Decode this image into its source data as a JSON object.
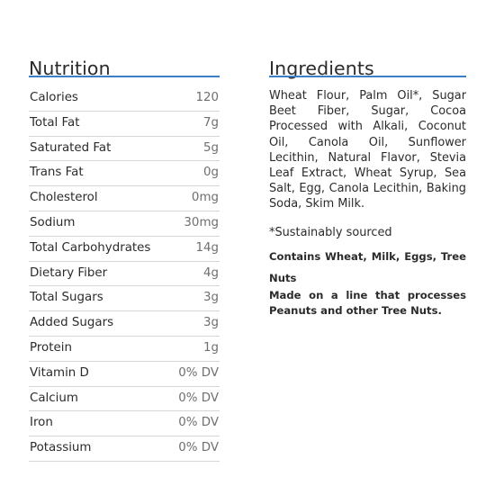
{
  "nutrition": {
    "title": "Nutrition",
    "rows": [
      {
        "label": "Calories",
        "value": "120"
      },
      {
        "label": "Total Fat",
        "value": "7g"
      },
      {
        "label": "Saturated Fat",
        "value": "5g"
      },
      {
        "label": "Trans Fat",
        "value": "0g"
      },
      {
        "label": "Cholesterol",
        "value": "0mg"
      },
      {
        "label": "Sodium",
        "value": "30mg"
      },
      {
        "label": "Total Carbohydrates",
        "value": "14g"
      },
      {
        "label": "Dietary Fiber",
        "value": "4g"
      },
      {
        "label": "Total Sugars",
        "value": "3g"
      },
      {
        "label": "Added Sugars",
        "value": "3g"
      },
      {
        "label": "Protein",
        "value": "1g"
      },
      {
        "label": "Vitamin D",
        "value": "0% DV"
      },
      {
        "label": "Calcium",
        "value": "0% DV"
      },
      {
        "label": "Iron",
        "value": "0% DV"
      },
      {
        "label": "Potassium",
        "value": "0% DV"
      }
    ]
  },
  "ingredients": {
    "title": "Ingredients",
    "list": "Wheat Flour, Palm Oil*, Sugar Beet Fiber, Sugar, Cocoa Processed with Alkali, Coconut Oil, Canola Oil, Sunflower Lecithin, Natural Flavor, Stevia Leaf Extract, Wheat Syrup, Sea Salt, Egg, Canola Lecithin, Baking Soda, Skim Milk.",
    "note": "*Sustainably sourced",
    "contains": "Contains Wheat, Milk, Eggs, Tree Nuts",
    "facility": "Made on a line that processes Peanuts and other Tree Nuts."
  },
  "colors": {
    "accent_rule": "#3b7fc4",
    "row_divider": "#d6d6d6",
    "text": "#2b2b2b",
    "value_text": "#6f6f6f"
  }
}
